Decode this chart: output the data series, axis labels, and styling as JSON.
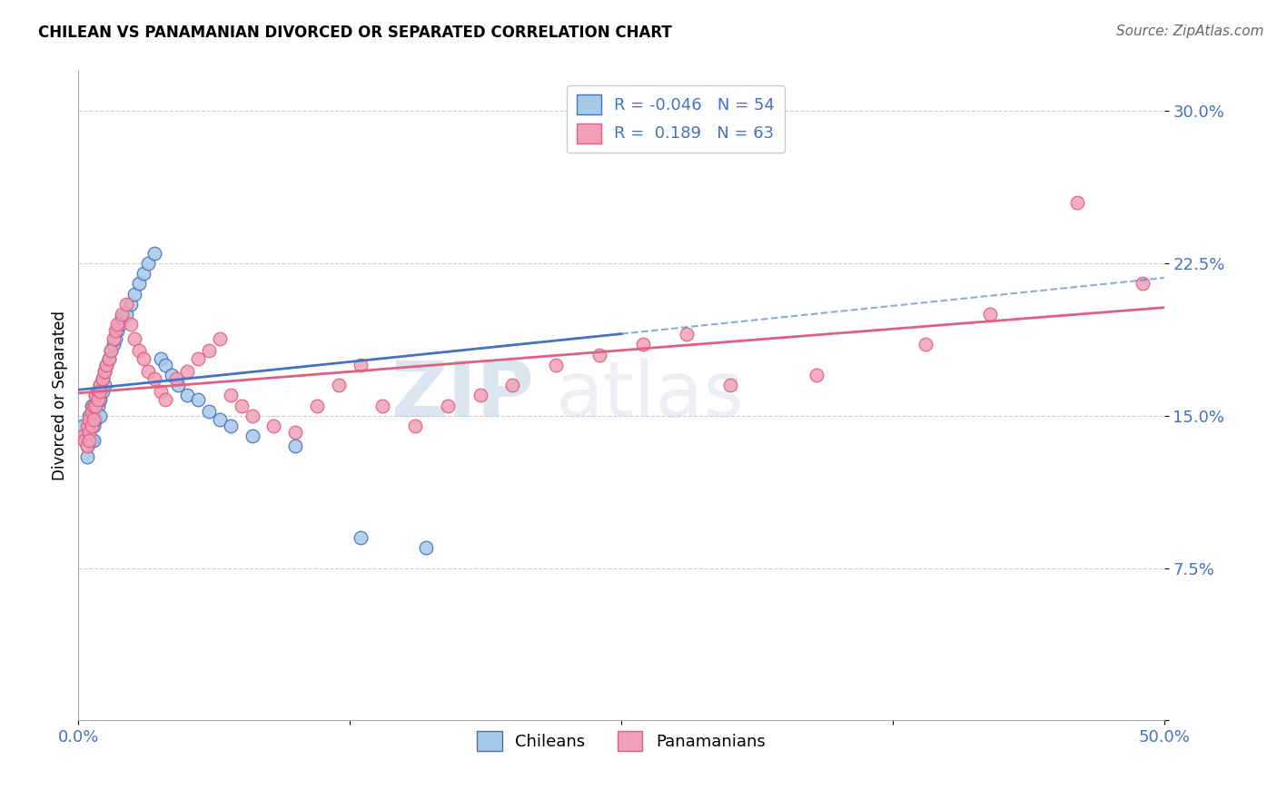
{
  "title": "CHILEAN VS PANAMANIAN DIVORCED OR SEPARATED CORRELATION CHART",
  "source": "Source: ZipAtlas.com",
  "ylabel_label": "Divorced or Separated",
  "xlim": [
    0.0,
    0.5
  ],
  "ylim": [
    0.0,
    0.32
  ],
  "xticks": [
    0.0,
    0.125,
    0.25,
    0.375,
    0.5
  ],
  "xtick_labels": [
    "0.0%",
    "",
    "",
    "",
    "50.0%"
  ],
  "yticks": [
    0.0,
    0.075,
    0.15,
    0.225,
    0.3
  ],
  "ytick_labels": [
    "",
    "7.5%",
    "15.0%",
    "22.5%",
    "30.0%"
  ],
  "grid_yticks": [
    0.075,
    0.15,
    0.225,
    0.3
  ],
  "R_chilean": -0.046,
  "N_chilean": 54,
  "R_panamanian": 0.189,
  "N_panamanian": 63,
  "color_chilean": "#a8c8e8",
  "color_panamanian": "#f0a0b8",
  "line_color_chilean": "#4472c4",
  "line_color_panamanian": "#e06080",
  "watermark": "ZIPatlas",
  "legend_label_chilean": "Chileans",
  "legend_label_panamanian": "Panamanians",
  "chilean_x": [
    0.002,
    0.003,
    0.004,
    0.004,
    0.005,
    0.005,
    0.005,
    0.006,
    0.006,
    0.006,
    0.007,
    0.007,
    0.007,
    0.008,
    0.008,
    0.008,
    0.009,
    0.009,
    0.01,
    0.01,
    0.01,
    0.011,
    0.011,
    0.012,
    0.012,
    0.013,
    0.014,
    0.015,
    0.016,
    0.017,
    0.018,
    0.019,
    0.02,
    0.022,
    0.024,
    0.026,
    0.028,
    0.03,
    0.032,
    0.035,
    0.038,
    0.04,
    0.043,
    0.046,
    0.05,
    0.055,
    0.06,
    0.065,
    0.07,
    0.08,
    0.1,
    0.13,
    0.16,
    0.25
  ],
  "chilean_y": [
    0.145,
    0.14,
    0.135,
    0.13,
    0.15,
    0.145,
    0.14,
    0.155,
    0.148,
    0.138,
    0.152,
    0.145,
    0.138,
    0.16,
    0.155,
    0.148,
    0.162,
    0.155,
    0.165,
    0.158,
    0.15,
    0.168,
    0.162,
    0.172,
    0.165,
    0.175,
    0.178,
    0.182,
    0.185,
    0.188,
    0.192,
    0.195,
    0.198,
    0.2,
    0.205,
    0.21,
    0.215,
    0.22,
    0.225,
    0.23,
    0.178,
    0.175,
    0.17,
    0.165,
    0.16,
    0.158,
    0.152,
    0.148,
    0.145,
    0.14,
    0.135,
    0.09,
    0.085,
    0.295
  ],
  "panamanian_x": [
    0.002,
    0.003,
    0.004,
    0.004,
    0.005,
    0.005,
    0.005,
    0.006,
    0.006,
    0.007,
    0.007,
    0.008,
    0.008,
    0.009,
    0.009,
    0.01,
    0.01,
    0.011,
    0.012,
    0.013,
    0.014,
    0.015,
    0.016,
    0.017,
    0.018,
    0.02,
    0.022,
    0.024,
    0.026,
    0.028,
    0.03,
    0.032,
    0.035,
    0.038,
    0.04,
    0.045,
    0.05,
    0.055,
    0.06,
    0.065,
    0.07,
    0.075,
    0.08,
    0.09,
    0.1,
    0.11,
    0.12,
    0.13,
    0.14,
    0.155,
    0.17,
    0.185,
    0.2,
    0.22,
    0.24,
    0.26,
    0.28,
    0.3,
    0.34,
    0.39,
    0.42,
    0.46,
    0.49
  ],
  "panamanian_y": [
    0.14,
    0.138,
    0.135,
    0.145,
    0.148,
    0.142,
    0.138,
    0.152,
    0.145,
    0.155,
    0.148,
    0.16,
    0.155,
    0.162,
    0.158,
    0.165,
    0.162,
    0.168,
    0.172,
    0.175,
    0.178,
    0.182,
    0.188,
    0.192,
    0.195,
    0.2,
    0.205,
    0.195,
    0.188,
    0.182,
    0.178,
    0.172,
    0.168,
    0.162,
    0.158,
    0.168,
    0.172,
    0.178,
    0.182,
    0.188,
    0.16,
    0.155,
    0.15,
    0.145,
    0.142,
    0.155,
    0.165,
    0.175,
    0.155,
    0.145,
    0.155,
    0.16,
    0.165,
    0.175,
    0.18,
    0.185,
    0.19,
    0.165,
    0.17,
    0.185,
    0.2,
    0.255,
    0.215
  ]
}
